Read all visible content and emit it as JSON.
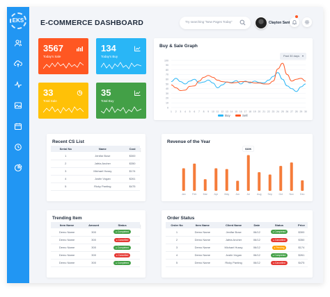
{
  "brand": {
    "logo_text": "EKS"
  },
  "header": {
    "title": "E-COMMERCE DASHBOARD",
    "search_placeholder": "Try searching “New Pages Today”",
    "user_name": "Clayton Santos"
  },
  "sidebar": {
    "icons": [
      "users-icon",
      "upload-icon",
      "activity-icon",
      "image-icon",
      "calendar-icon",
      "clock-icon",
      "pie-icon"
    ]
  },
  "stats": [
    {
      "value": "3567",
      "label": "Today's Sale",
      "color": "#ff5722",
      "icon": "bar-chart-icon"
    },
    {
      "value": "134",
      "label": "Today's Buy",
      "color": "#29b6f6",
      "icon": "line-chart-icon"
    },
    {
      "value": "33",
      "label": "Total Sale",
      "color": "#ffc107",
      "icon": "pie-chart-icon"
    },
    {
      "value": "35",
      "label": "Total Buy",
      "color": "#43a047",
      "icon": "line-chart-icon"
    }
  ],
  "buy_sale": {
    "title": "Buy & Sale Graph",
    "period": "Past 30 days",
    "legend": [
      {
        "name": "Buy",
        "color": "#29b6f6"
      },
      {
        "name": "Sell",
        "color": "#ff5722"
      }
    ]
  },
  "revenue": {
    "title": "Revenue of the Year",
    "highlight": "$10K"
  },
  "chart_data": [
    {
      "type": "line",
      "title": "Buy & Sale Graph",
      "x": [
        1,
        2,
        3,
        4,
        5,
        6,
        7,
        8,
        9,
        10,
        11,
        12,
        13,
        14,
        15,
        16,
        17,
        18,
        19,
        20,
        21,
        22,
        23,
        24,
        25,
        26,
        27,
        28,
        29,
        30
      ],
      "ylim": [
        0,
        100
      ],
      "yticks": [
        0,
        10,
        20,
        30,
        40,
        50,
        60,
        70,
        80,
        90,
        100
      ],
      "grid": true,
      "legend": "bottom",
      "series": [
        {
          "name": "Buy",
          "color": "#29b6f6",
          "values": [
            55,
            62,
            55,
            50,
            56,
            60,
            52,
            54,
            58,
            52,
            42,
            48,
            54,
            53,
            57,
            50,
            56,
            52,
            56,
            53,
            52,
            58,
            66,
            74,
            60,
            46,
            40,
            34,
            44,
            50
          ]
        },
        {
          "name": "Sell",
          "color": "#ff5722",
          "values": [
            48,
            42,
            36,
            37,
            45,
            46,
            56,
            64,
            68,
            64,
            58,
            55,
            54,
            52,
            53,
            55,
            55,
            54,
            52,
            52,
            50,
            50,
            56,
            82,
            94,
            70,
            56,
            60,
            62,
            56
          ]
        }
      ]
    },
    {
      "type": "bar",
      "title": "Revenue of the Year",
      "categories": [
        "Jan",
        "Feb",
        "Mar",
        "Apr",
        "May",
        "Jun",
        "Jul",
        "Aug",
        "Sep",
        "Oct",
        "Nov",
        "Dec"
      ],
      "values": [
        58,
        70,
        30,
        58,
        56,
        26,
        92,
        48,
        42,
        64,
        73,
        27
      ],
      "ylim": [
        0,
        100
      ],
      "color": "#f57c3a",
      "annotation": {
        "category": "Jul",
        "text": "$10K"
      }
    }
  ],
  "cs_list": {
    "title": "Recent CS List",
    "headers": [
      "Serial No",
      "Name",
      "Cost"
    ],
    "rows": [
      [
        "1",
        "Jenifar Bose",
        "$300"
      ],
      [
        "2",
        "Jafria Ancher",
        "$350"
      ],
      [
        "3",
        "Michael Hussy",
        "$174"
      ],
      [
        "4",
        "Justin Vogan",
        "$261"
      ],
      [
        "5",
        "Ricky Panting",
        "$475"
      ]
    ]
  },
  "trending": {
    "title": "Trending Item",
    "headers": [
      "Item Name",
      "Amount",
      "Status"
    ],
    "rows": [
      {
        "name": "Demo Name",
        "amount": "300",
        "status": "Completed",
        "color": "#43a047"
      },
      {
        "name": "Demo Name",
        "amount": "300",
        "status": "Cancelled",
        "color": "#e53935"
      },
      {
        "name": "Demo Name",
        "amount": "300",
        "status": "Completed",
        "color": "#43a047"
      },
      {
        "name": "Demo Name",
        "amount": "300",
        "status": "Cancelled",
        "color": "#e53935"
      },
      {
        "name": "Demo Name",
        "amount": "300",
        "status": "Completed",
        "color": "#43a047"
      }
    ]
  },
  "orders": {
    "title": "Order Status",
    "headers": [
      "Order No",
      "Item Name",
      "Client Name",
      "Date",
      "Status",
      "Price"
    ],
    "rows": [
      {
        "no": "1",
        "item": "Demo Name",
        "client": "Jenifar Bose",
        "date": "06/12",
        "status": "Completed",
        "color": "#43a047",
        "price": "$300"
      },
      {
        "no": "2",
        "item": "Demo Name",
        "client": "Jafria Ancher",
        "date": "06/12",
        "status": "Cancelled",
        "color": "#e53935",
        "price": "$350"
      },
      {
        "no": "3",
        "item": "Demo Name",
        "client": "Michael Hussy",
        "date": "06/12",
        "status": "Pending",
        "color": "#ffa000",
        "price": "$174"
      },
      {
        "no": "4",
        "item": "Demo Name",
        "client": "Justin Vogan",
        "date": "06/12",
        "status": "Completed",
        "color": "#43a047",
        "price": "$261"
      },
      {
        "no": "5",
        "item": "Demo Name",
        "client": "Ricky Panting",
        "date": "06/12",
        "status": "Cancelled",
        "color": "#e53935",
        "price": "$475"
      }
    ]
  }
}
